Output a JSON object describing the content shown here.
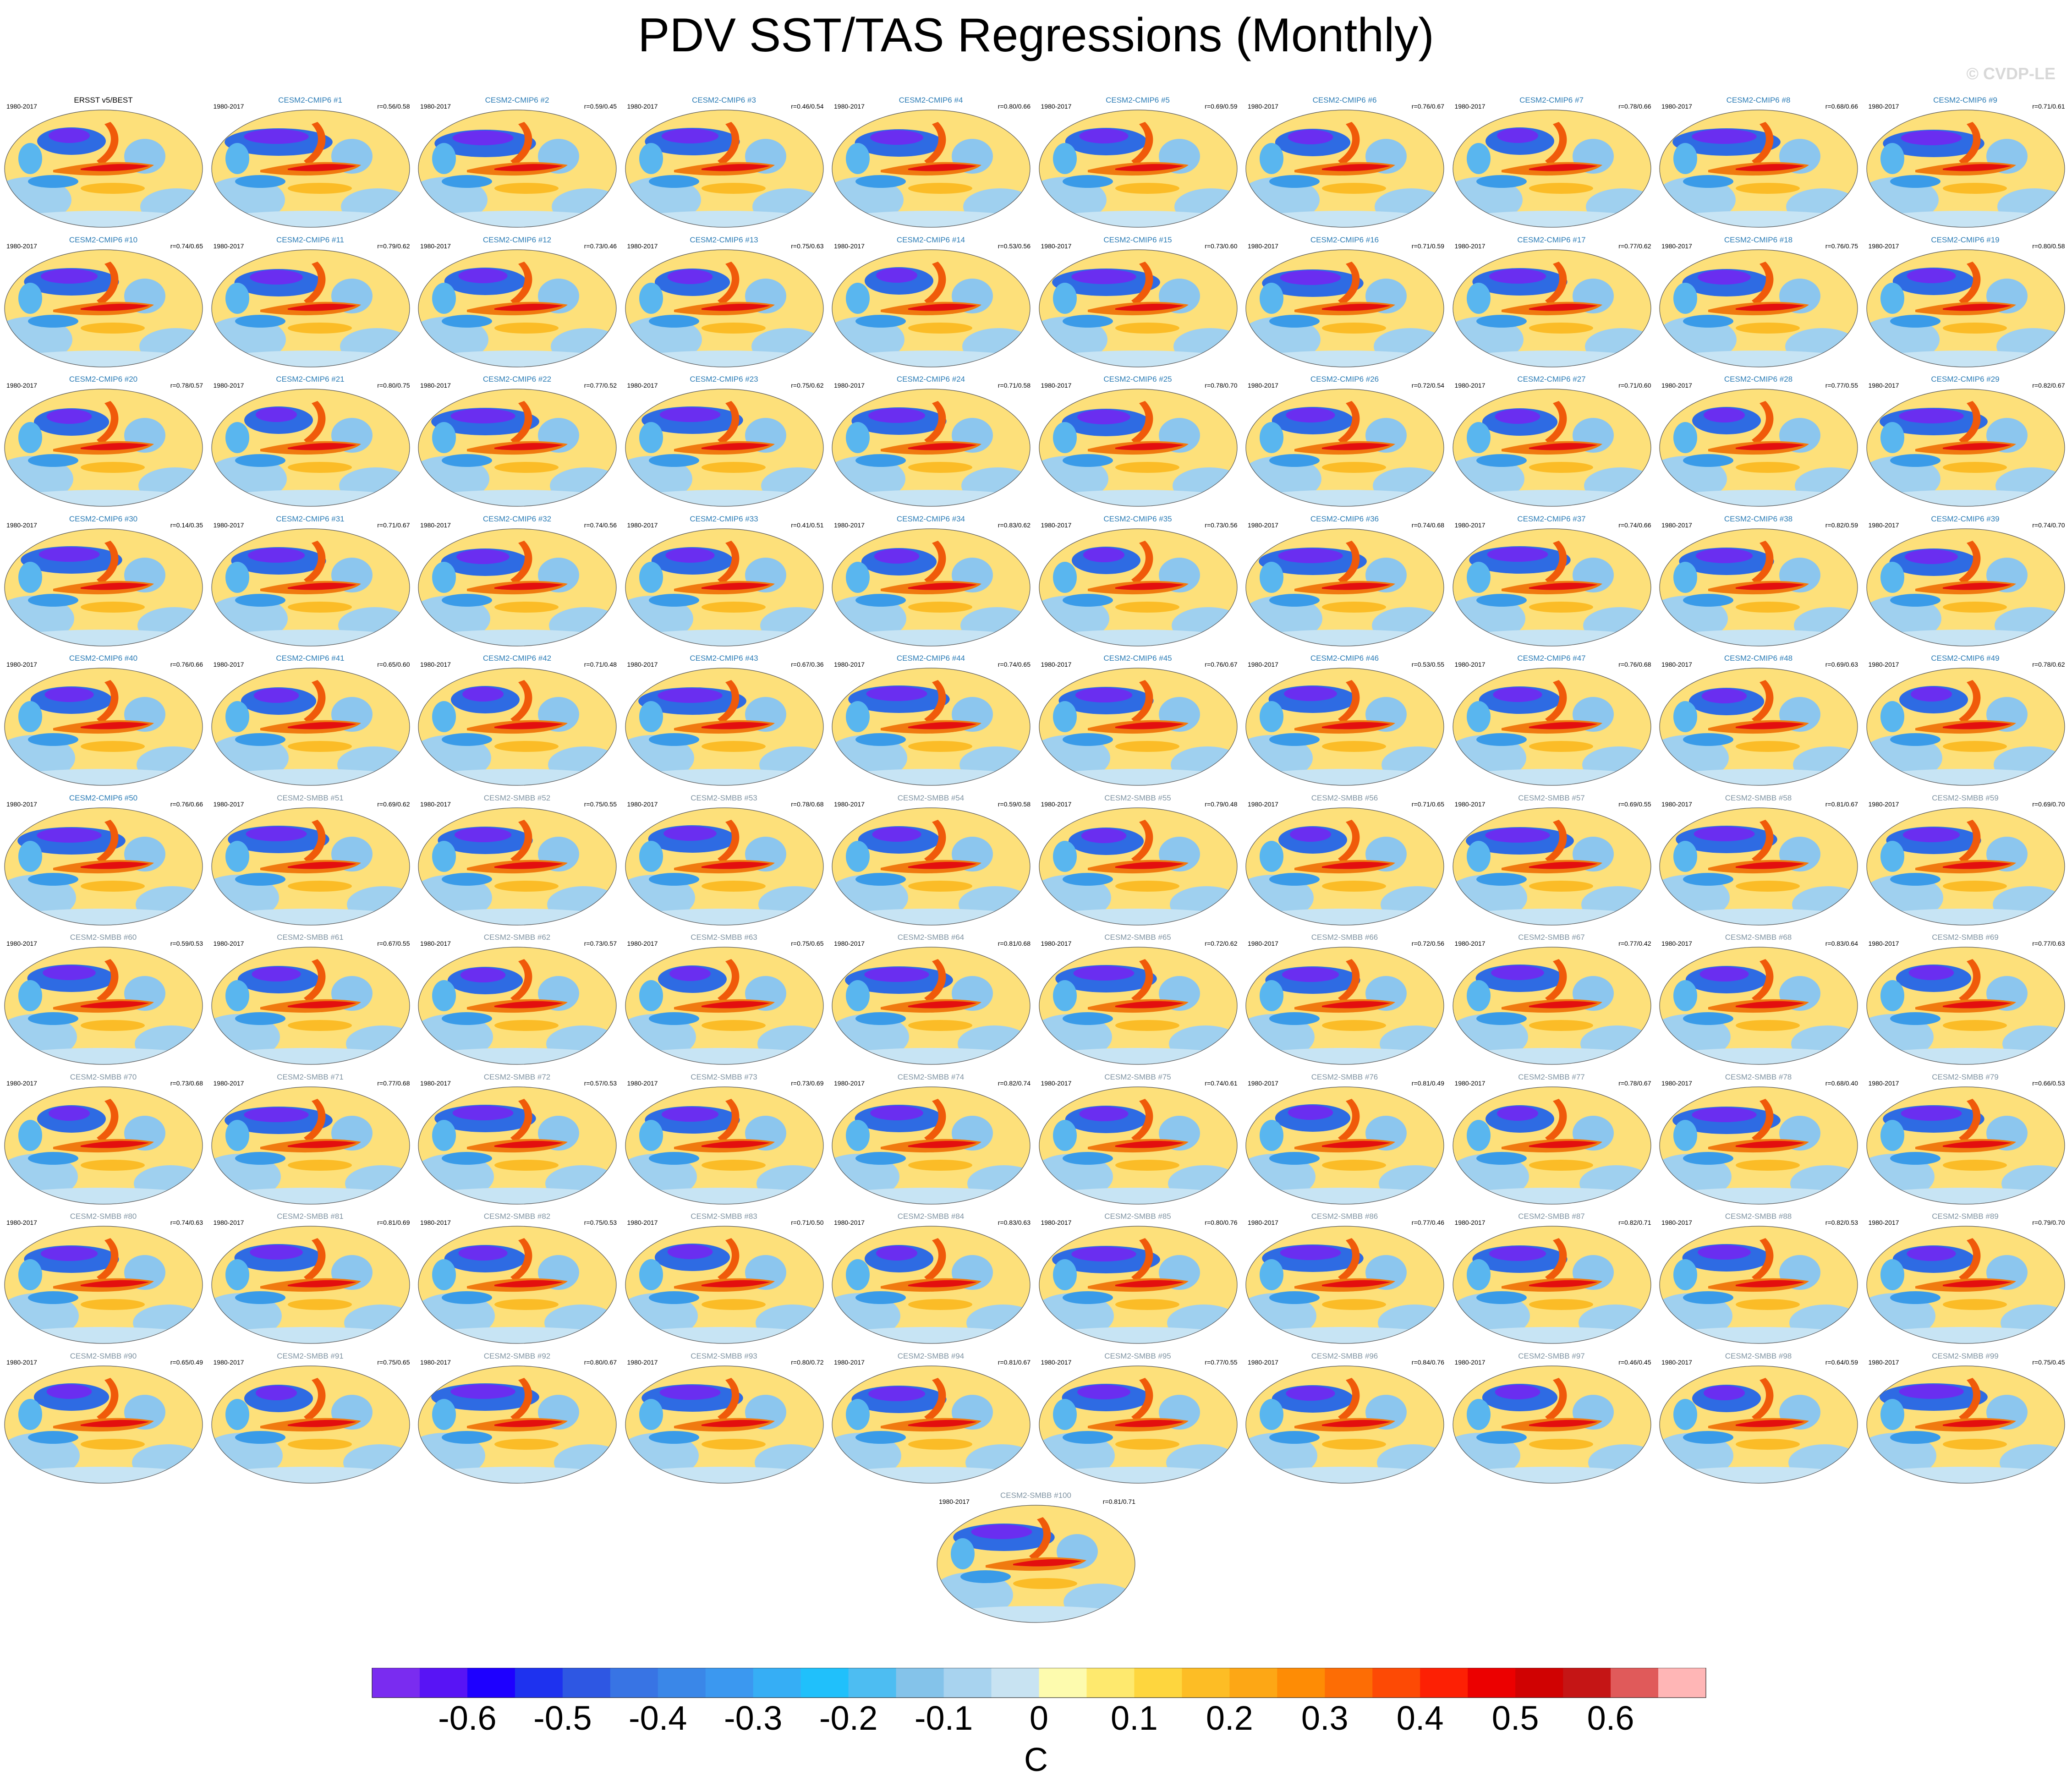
{
  "title": "PDV SST/TAS Regressions (Monthly)",
  "watermark": "© CVDP-LE",
  "colorbar": {
    "colors": [
      "#7a2cf0",
      "#5814f5",
      "#1e00ff",
      "#1e32ef",
      "#2e57e3",
      "#3874e4",
      "#3a87e8",
      "#3b98f0",
      "#36aef5",
      "#20c0fb",
      "#4dbdf2",
      "#84c3ea",
      "#a8d3ef",
      "#c8e3f2",
      "#fdfbae",
      "#fee96e",
      "#fed63e",
      "#fdbd25",
      "#fda715",
      "#fe8c05",
      "#fd6d05",
      "#fd4a05",
      "#fd2004",
      "#ec0000",
      "#d00202",
      "#c51515",
      "#e05a5a",
      "#ffb6b6"
    ],
    "tick_labels": [
      "-0.6",
      "-0.5",
      "-0.4",
      "-0.3",
      "-0.2",
      "-0.1",
      "0",
      "0.1",
      "0.2",
      "0.3",
      "0.4",
      "0.5",
      "0.6"
    ],
    "unit": "C"
  },
  "panels": [
    {
      "title": "ERSST v5/BEST",
      "period": "1980-2017",
      "corr": ""
    },
    {
      "title": "CESM2-CMIP6 #1",
      "period": "1980-2017",
      "corr": "r=0.56/0.58"
    },
    {
      "title": "CESM2-CMIP6 #2",
      "period": "1980-2017",
      "corr": "r=0.59/0.45"
    },
    {
      "title": "CESM2-CMIP6 #3",
      "period": "1980-2017",
      "corr": "r=0.46/0.54"
    },
    {
      "title": "CESM2-CMIP6 #4",
      "period": "1980-2017",
      "corr": "r=0.80/0.66"
    },
    {
      "title": "CESM2-CMIP6 #5",
      "period": "1980-2017",
      "corr": "r=0.69/0.59"
    },
    {
      "title": "CESM2-CMIP6 #6",
      "period": "1980-2017",
      "corr": "r=0.76/0.67"
    },
    {
      "title": "CESM2-CMIP6 #7",
      "period": "1980-2017",
      "corr": "r=0.78/0.66"
    },
    {
      "title": "CESM2-CMIP6 #8",
      "period": "1980-2017",
      "corr": "r=0.68/0.66"
    },
    {
      "title": "CESM2-CMIP6 #9",
      "period": "1980-2017",
      "corr": "r=0.71/0.61"
    },
    {
      "title": "CESM2-CMIP6 #10",
      "period": "1980-2017",
      "corr": "r=0.74/0.65"
    },
    {
      "title": "CESM2-CMIP6 #11",
      "period": "1980-2017",
      "corr": "r=0.79/0.62"
    },
    {
      "title": "CESM2-CMIP6 #12",
      "period": "1980-2017",
      "corr": "r=0.73/0.46"
    },
    {
      "title": "CESM2-CMIP6 #13",
      "period": "1980-2017",
      "corr": "r=0.75/0.63"
    },
    {
      "title": "CESM2-CMIP6 #14",
      "period": "1980-2017",
      "corr": "r=0.53/0.56"
    },
    {
      "title": "CESM2-CMIP6 #15",
      "period": "1980-2017",
      "corr": "r=0.73/0.60"
    },
    {
      "title": "CESM2-CMIP6 #16",
      "period": "1980-2017",
      "corr": "r=0.71/0.59"
    },
    {
      "title": "CESM2-CMIP6 #17",
      "period": "1980-2017",
      "corr": "r=0.77/0.62"
    },
    {
      "title": "CESM2-CMIP6 #18",
      "period": "1980-2017",
      "corr": "r=0.76/0.75"
    },
    {
      "title": "CESM2-CMIP6 #19",
      "period": "1980-2017",
      "corr": "r=0.80/0.58"
    },
    {
      "title": "CESM2-CMIP6 #20",
      "period": "1980-2017",
      "corr": "r=0.78/0.57"
    },
    {
      "title": "CESM2-CMIP6 #21",
      "period": "1980-2017",
      "corr": "r=0.80/0.75"
    },
    {
      "title": "CESM2-CMIP6 #22",
      "period": "1980-2017",
      "corr": "r=0.77/0.52"
    },
    {
      "title": "CESM2-CMIP6 #23",
      "period": "1980-2017",
      "corr": "r=0.75/0.62"
    },
    {
      "title": "CESM2-CMIP6 #24",
      "period": "1980-2017",
      "corr": "r=0.71/0.58"
    },
    {
      "title": "CESM2-CMIP6 #25",
      "period": "1980-2017",
      "corr": "r=0.78/0.70"
    },
    {
      "title": "CESM2-CMIP6 #26",
      "period": "1980-2017",
      "corr": "r=0.72/0.54"
    },
    {
      "title": "CESM2-CMIP6 #27",
      "period": "1980-2017",
      "corr": "r=0.71/0.60"
    },
    {
      "title": "CESM2-CMIP6 #28",
      "period": "1980-2017",
      "corr": "r=0.77/0.55"
    },
    {
      "title": "CESM2-CMIP6 #29",
      "period": "1980-2017",
      "corr": "r=0.82/0.67"
    },
    {
      "title": "CESM2-CMIP6 #30",
      "period": "1980-2017",
      "corr": "r=0.14/0.35"
    },
    {
      "title": "CESM2-CMIP6 #31",
      "period": "1980-2017",
      "corr": "r=0.71/0.67"
    },
    {
      "title": "CESM2-CMIP6 #32",
      "period": "1980-2017",
      "corr": "r=0.74/0.56"
    },
    {
      "title": "CESM2-CMIP6 #33",
      "period": "1980-2017",
      "corr": "r=0.41/0.51"
    },
    {
      "title": "CESM2-CMIP6 #34",
      "period": "1980-2017",
      "corr": "r=0.83/0.62"
    },
    {
      "title": "CESM2-CMIP6 #35",
      "period": "1980-2017",
      "corr": "r=0.73/0.56"
    },
    {
      "title": "CESM2-CMIP6 #36",
      "period": "1980-2017",
      "corr": "r=0.74/0.68"
    },
    {
      "title": "CESM2-CMIP6 #37",
      "period": "1980-2017",
      "corr": "r=0.74/0.66"
    },
    {
      "title": "CESM2-CMIP6 #38",
      "period": "1980-2017",
      "corr": "r=0.82/0.59"
    },
    {
      "title": "CESM2-CMIP6 #39",
      "period": "1980-2017",
      "corr": "r=0.74/0.70"
    },
    {
      "title": "CESM2-CMIP6 #40",
      "period": "1980-2017",
      "corr": "r=0.76/0.66"
    },
    {
      "title": "CESM2-CMIP6 #41",
      "period": "1980-2017",
      "corr": "r=0.65/0.60"
    },
    {
      "title": "CESM2-CMIP6 #42",
      "period": "1980-2017",
      "corr": "r=0.71/0.48"
    },
    {
      "title": "CESM2-CMIP6 #43",
      "period": "1980-2017",
      "corr": "r=0.67/0.36"
    },
    {
      "title": "CESM2-CMIP6 #44",
      "period": "1980-2017",
      "corr": "r=0.74/0.65"
    },
    {
      "title": "CESM2-CMIP6 #45",
      "period": "1980-2017",
      "corr": "r=0.76/0.67"
    },
    {
      "title": "CESM2-CMIP6 #46",
      "period": "1980-2017",
      "corr": "r=0.53/0.55"
    },
    {
      "title": "CESM2-CMIP6 #47",
      "period": "1980-2017",
      "corr": "r=0.76/0.68"
    },
    {
      "title": "CESM2-CMIP6 #48",
      "period": "1980-2017",
      "corr": "r=0.69/0.63"
    },
    {
      "title": "CESM2-CMIP6 #49",
      "period": "1980-2017",
      "corr": "r=0.78/0.62"
    },
    {
      "title": "CESM2-CMIP6 #50",
      "period": "1980-2017",
      "corr": "r=0.76/0.66"
    },
    {
      "title": "CESM2-SMBB #51",
      "period": "1980-2017",
      "corr": "r=0.69/0.62"
    },
    {
      "title": "CESM2-SMBB #52",
      "period": "1980-2017",
      "corr": "r=0.75/0.55"
    },
    {
      "title": "CESM2-SMBB #53",
      "period": "1980-2017",
      "corr": "r=0.78/0.68"
    },
    {
      "title": "CESM2-SMBB #54",
      "period": "1980-2017",
      "corr": "r=0.59/0.58"
    },
    {
      "title": "CESM2-SMBB #55",
      "period": "1980-2017",
      "corr": "r=0.79/0.48"
    },
    {
      "title": "CESM2-SMBB #56",
      "period": "1980-2017",
      "corr": "r=0.71/0.65"
    },
    {
      "title": "CESM2-SMBB #57",
      "period": "1980-2017",
      "corr": "r=0.69/0.55"
    },
    {
      "title": "CESM2-SMBB #58",
      "period": "1980-2017",
      "corr": "r=0.81/0.67"
    },
    {
      "title": "CESM2-SMBB #59",
      "period": "1980-2017",
      "corr": "r=0.69/0.70"
    },
    {
      "title": "CESM2-SMBB #60",
      "period": "1980-2017",
      "corr": "r=0.59/0.53"
    },
    {
      "title": "CESM2-SMBB #61",
      "period": "1980-2017",
      "corr": "r=0.67/0.55"
    },
    {
      "title": "CESM2-SMBB #62",
      "period": "1980-2017",
      "corr": "r=0.73/0.57"
    },
    {
      "title": "CESM2-SMBB #63",
      "period": "1980-2017",
      "corr": "r=0.75/0.65"
    },
    {
      "title": "CESM2-SMBB #64",
      "period": "1980-2017",
      "corr": "r=0.81/0.68"
    },
    {
      "title": "CESM2-SMBB #65",
      "period": "1980-2017",
      "corr": "r=0.72/0.62"
    },
    {
      "title": "CESM2-SMBB #66",
      "period": "1980-2017",
      "corr": "r=0.72/0.56"
    },
    {
      "title": "CESM2-SMBB #67",
      "period": "1980-2017",
      "corr": "r=0.77/0.42"
    },
    {
      "title": "CESM2-SMBB #68",
      "period": "1980-2017",
      "corr": "r=0.83/0.64"
    },
    {
      "title": "CESM2-SMBB #69",
      "period": "1980-2017",
      "corr": "r=0.77/0.63"
    },
    {
      "title": "CESM2-SMBB #70",
      "period": "1980-2017",
      "corr": "r=0.73/0.68"
    },
    {
      "title": "CESM2-SMBB #71",
      "period": "1980-2017",
      "corr": "r=0.77/0.68"
    },
    {
      "title": "CESM2-SMBB #72",
      "period": "1980-2017",
      "corr": "r=0.57/0.53"
    },
    {
      "title": "CESM2-SMBB #73",
      "period": "1980-2017",
      "corr": "r=0.73/0.69"
    },
    {
      "title": "CESM2-SMBB #74",
      "period": "1980-2017",
      "corr": "r=0.82/0.74"
    },
    {
      "title": "CESM2-SMBB #75",
      "period": "1980-2017",
      "corr": "r=0.74/0.61"
    },
    {
      "title": "CESM2-SMBB #76",
      "period": "1980-2017",
      "corr": "r=0.81/0.49"
    },
    {
      "title": "CESM2-SMBB #77",
      "period": "1980-2017",
      "corr": "r=0.78/0.67"
    },
    {
      "title": "CESM2-SMBB #78",
      "period": "1980-2017",
      "corr": "r=0.68/0.40"
    },
    {
      "title": "CESM2-SMBB #79",
      "period": "1980-2017",
      "corr": "r=0.66/0.53"
    },
    {
      "title": "CESM2-SMBB #80",
      "period": "1980-2017",
      "corr": "r=0.74/0.63"
    },
    {
      "title": "CESM2-SMBB #81",
      "period": "1980-2017",
      "corr": "r=0.81/0.69"
    },
    {
      "title": "CESM2-SMBB #82",
      "period": "1980-2017",
      "corr": "r=0.75/0.53"
    },
    {
      "title": "CESM2-SMBB #83",
      "period": "1980-2017",
      "corr": "r=0.71/0.50"
    },
    {
      "title": "CESM2-SMBB #84",
      "period": "1980-2017",
      "corr": "r=0.83/0.63"
    },
    {
      "title": "CESM2-SMBB #85",
      "period": "1980-2017",
      "corr": "r=0.80/0.76"
    },
    {
      "title": "CESM2-SMBB #86",
      "period": "1980-2017",
      "corr": "r=0.77/0.46"
    },
    {
      "title": "CESM2-SMBB #87",
      "period": "1980-2017",
      "corr": "r=0.82/0.71"
    },
    {
      "title": "CESM2-SMBB #88",
      "period": "1980-2017",
      "corr": "r=0.82/0.53"
    },
    {
      "title": "CESM2-SMBB #89",
      "period": "1980-2017",
      "corr": "r=0.79/0.70"
    },
    {
      "title": "CESM2-SMBB #90",
      "period": "1980-2017",
      "corr": "r=0.65/0.49"
    },
    {
      "title": "CESM2-SMBB #91",
      "period": "1980-2017",
      "corr": "r=0.75/0.65"
    },
    {
      "title": "CESM2-SMBB #92",
      "period": "1980-2017",
      "corr": "r=0.80/0.67"
    },
    {
      "title": "CESM2-SMBB #93",
      "period": "1980-2017",
      "corr": "r=0.80/0.72"
    },
    {
      "title": "CESM2-SMBB #94",
      "period": "1980-2017",
      "corr": "r=0.81/0.67"
    },
    {
      "title": "CESM2-SMBB #95",
      "period": "1980-2017",
      "corr": "r=0.77/0.55"
    },
    {
      "title": "CESM2-SMBB #96",
      "period": "1980-2017",
      "corr": "r=0.84/0.76"
    },
    {
      "title": "CESM2-SMBB #97",
      "period": "1980-2017",
      "corr": "r=0.46/0.45"
    },
    {
      "title": "CESM2-SMBB #98",
      "period": "1980-2017",
      "corr": "r=0.64/0.59"
    },
    {
      "title": "CESM2-SMBB #99",
      "period": "1980-2017",
      "corr": "r=0.75/0.45"
    },
    {
      "title": "CESM2-SMBB #100",
      "period": "1980-2017",
      "corr": "r=0.81/0.71"
    }
  ],
  "chart_data": {
    "type": "heatmap",
    "title": "PDV SST/TAS Regressions (Monthly)",
    "projection": "global",
    "panel_count": 101,
    "colorbar_levels": [
      -0.65,
      -0.6,
      -0.55,
      -0.5,
      -0.45,
      -0.4,
      -0.35,
      -0.3,
      -0.25,
      -0.2,
      -0.15,
      -0.1,
      -0.05,
      0,
      0.05,
      0.1,
      0.15,
      0.2,
      0.25,
      0.3,
      0.35,
      0.4,
      0.45,
      0.5,
      0.55,
      0.6,
      0.65
    ],
    "unit": "C"
  }
}
